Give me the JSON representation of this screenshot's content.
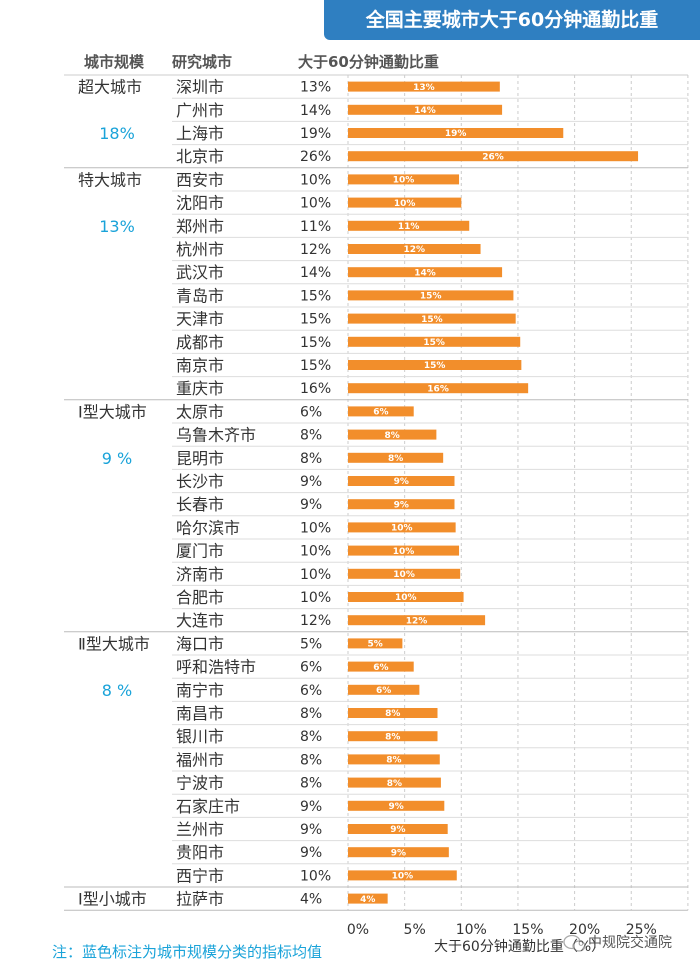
{
  "chart_data": {
    "type": "bar",
    "orientation": "horizontal",
    "title": "全国主要城市大于60分钟通勤比重",
    "column_headers": [
      "城市规模",
      "研究城市",
      "大于60分钟通勤比重"
    ],
    "xlabel": "大于60分钟通勤比重（%）",
    "xlim": [
      0,
      30
    ],
    "xticks": [
      "0%",
      "5%",
      "10%",
      "15%",
      "20%",
      "25%"
    ],
    "xtick_values": [
      0,
      5,
      10,
      15,
      20,
      25
    ],
    "grid": "vertical-dashed",
    "bar_color": "#f28e2b",
    "group_value_color": "#1aa3d9",
    "groups": [
      {
        "name": "超大城市",
        "value_label": "18%",
        "rows": [
          {
            "city": "深圳市",
            "label": "13%",
            "value": 13.4
          },
          {
            "city": "广州市",
            "label": "14%",
            "value": 13.6
          },
          {
            "city": "上海市",
            "label": "19%",
            "value": 19.0
          },
          {
            "city": "北京市",
            "label": "26%",
            "value": 25.6
          }
        ]
      },
      {
        "name": "特大城市",
        "value_label": "13%",
        "rows": [
          {
            "city": "西安市",
            "label": "10%",
            "value": 9.8
          },
          {
            "city": "沈阳市",
            "label": "10%",
            "value": 10.0
          },
          {
            "city": "郑州市",
            "label": "11%",
            "value": 10.7
          },
          {
            "city": "杭州市",
            "label": "12%",
            "value": 11.7
          },
          {
            "city": "武汉市",
            "label": "14%",
            "value": 13.6
          },
          {
            "city": "青岛市",
            "label": "15%",
            "value": 14.6
          },
          {
            "city": "天津市",
            "label": "15%",
            "value": 14.8
          },
          {
            "city": "成都市",
            "label": "15%",
            "value": 15.2
          },
          {
            "city": "南京市",
            "label": "15%",
            "value": 15.3
          },
          {
            "city": "重庆市",
            "label": "16%",
            "value": 15.9
          }
        ]
      },
      {
        "name": "Ⅰ型大城市",
        "value_label": "9 %",
        "rows": [
          {
            "city": "太原市",
            "label": "6%",
            "value": 5.8
          },
          {
            "city": "乌鲁木齐市",
            "label": "8%",
            "value": 7.8
          },
          {
            "city": "昆明市",
            "label": "8%",
            "value": 8.4
          },
          {
            "city": "长沙市",
            "label": "9%",
            "value": 9.4
          },
          {
            "city": "长春市",
            "label": "9%",
            "value": 9.4
          },
          {
            "city": "哈尔滨市",
            "label": "10%",
            "value": 9.5
          },
          {
            "city": "厦门市",
            "label": "10%",
            "value": 9.8
          },
          {
            "city": "济南市",
            "label": "10%",
            "value": 9.9
          },
          {
            "city": "合肥市",
            "label": "10%",
            "value": 10.2
          },
          {
            "city": "大连市",
            "label": "12%",
            "value": 12.1
          }
        ]
      },
      {
        "name": "Ⅱ型大城市",
        "value_label": "8 %",
        "rows": [
          {
            "city": "海口市",
            "label": "5%",
            "value": 4.8
          },
          {
            "city": "呼和浩特市",
            "label": "6%",
            "value": 5.8
          },
          {
            "city": "南宁市",
            "label": "6%",
            "value": 6.3
          },
          {
            "city": "南昌市",
            "label": "8%",
            "value": 7.9
          },
          {
            "city": "银川市",
            "label": "8%",
            "value": 7.9
          },
          {
            "city": "福州市",
            "label": "8%",
            "value": 8.1
          },
          {
            "city": "宁波市",
            "label": "8%",
            "value": 8.2
          },
          {
            "city": "石家庄市",
            "label": "9%",
            "value": 8.5
          },
          {
            "city": "兰州市",
            "label": "9%",
            "value": 8.8
          },
          {
            "city": "贵阳市",
            "label": "9%",
            "value": 8.9
          },
          {
            "city": "西宁市",
            "label": "10%",
            "value": 9.6
          }
        ]
      },
      {
        "name": "Ⅰ型小城市",
        "value_label": "",
        "rows": [
          {
            "city": "拉萨市",
            "label": "4%",
            "value": 3.5
          }
        ]
      }
    ]
  },
  "footnote": "注：蓝色标注为城市规模分类的指标均值",
  "watermark": "中规院交通院",
  "watermark_icon": "wechat-icon"
}
